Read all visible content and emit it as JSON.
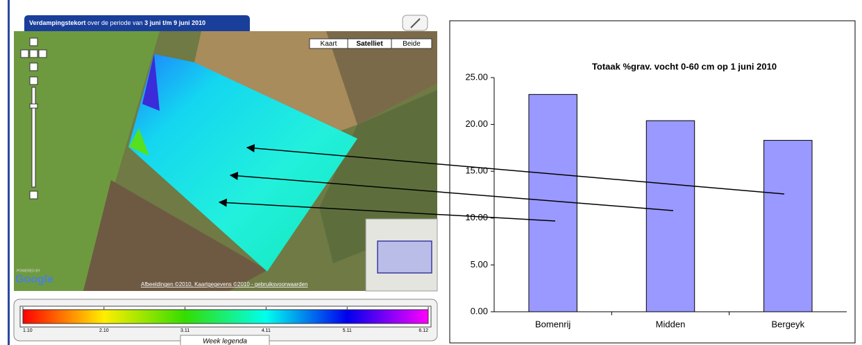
{
  "map": {
    "header": {
      "title": "Verdampingstekort",
      "middle": "over de periode van",
      "period": "3 juni t/m 9 juni 2010"
    },
    "buttons": [
      "Kaart",
      "Satelliet",
      "Beide"
    ],
    "logo": {
      "powered": "POWERED BY",
      "name": "Google"
    },
    "footer": [
      "Afbeeldingen ©2010",
      "Kaartgegevens ©2010",
      "gebruiksvoorwaarden"
    ],
    "legend": {
      "ticks": [
        "1.10",
        "2.10",
        "3.11",
        "4.11",
        "5.11",
        "6.12"
      ],
      "title": "Week legenda"
    }
  },
  "chart_data": {
    "type": "bar",
    "title": "Totaak %grav. vocht 0-60 cm op 1 juni 2010",
    "categories": [
      "Bomenrij",
      "Midden",
      "Bergeyk"
    ],
    "values": [
      23.2,
      20.4,
      18.3
    ],
    "color": "#9999ff",
    "ylim": [
      0,
      25
    ],
    "yticks": [
      {
        "value": 0,
        "label": "0.00"
      },
      {
        "value": 5,
        "label": "5.00"
      },
      {
        "value": 10,
        "label": "10.00"
      },
      {
        "value": 15,
        "label": "15.00"
      },
      {
        "value": 20,
        "label": "20.00"
      },
      {
        "value": 25,
        "label": "25.00"
      }
    ],
    "grid": false
  }
}
